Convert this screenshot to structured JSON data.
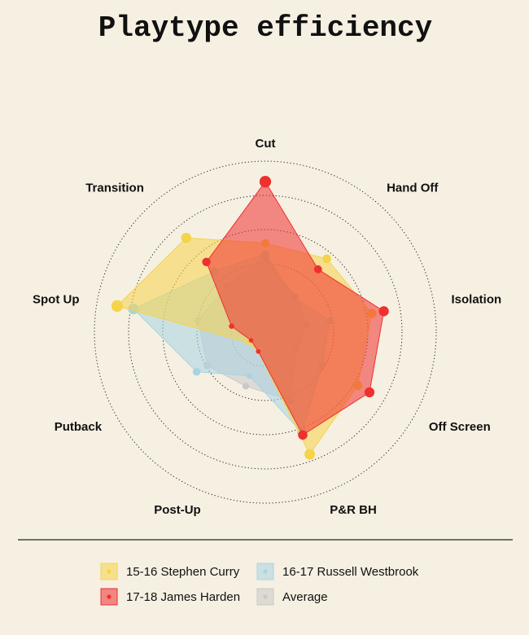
{
  "chart_data": {
    "type": "radar",
    "title": "Playtype efficiency",
    "axes": [
      "Cut",
      "Hand Off",
      "Isolation",
      "Off Screen",
      "P&R BH",
      "Post-Up",
      "Putback",
      "Spot Up",
      "Transition"
    ],
    "rings": 5,
    "grid": "dotted",
    "legend": "bottom",
    "series": [
      {
        "name": "Average",
        "color": "#c9c9c9",
        "values": [
          0.55,
          0.34,
          0.31,
          0.26,
          0.53,
          0.42,
          0.49,
          0.5,
          0.44
        ]
      },
      {
        "name": "16-17 Russell Westbrook",
        "color": "#a8d4e2",
        "values": [
          0.57,
          0.33,
          0.48,
          0.48,
          0.78,
          0.34,
          0.58,
          0.98,
          0.58
        ]
      },
      {
        "name": "15-16 Stephen Curry",
        "color": "#f5d34a",
        "values": [
          0.65,
          0.7,
          0.79,
          0.78,
          0.95,
          0.15,
          0.15,
          1.1,
          0.9
        ]
      },
      {
        "name": "17-18 James Harden",
        "color": "#ee3030",
        "values": [
          1.1,
          0.6,
          0.88,
          0.88,
          0.8,
          0.15,
          0.12,
          0.25,
          0.67
        ]
      }
    ],
    "legend_order": [
      "15-16 Stephen Curry",
      "16-17 Russell Westbrook",
      "17-18 James Harden",
      "Average"
    ]
  }
}
